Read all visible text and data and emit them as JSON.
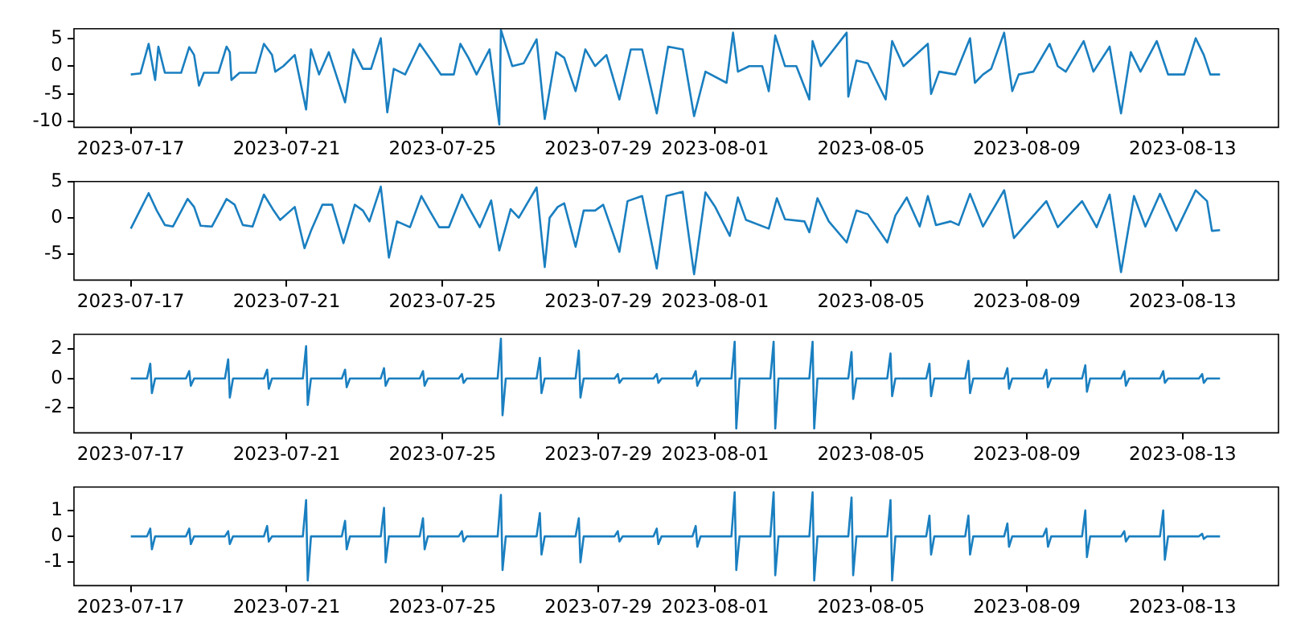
{
  "chart_data": [
    {
      "type": "line",
      "xlim": [
        "2023-07-15T13:00",
        "2023-08-15T11:00"
      ],
      "xticks": [
        "2023-07-17",
        "2023-07-21",
        "2023-07-25",
        "2023-07-29",
        "2023-08-01",
        "2023-08-05",
        "2023-08-09",
        "2023-08-13"
      ],
      "ylim": [
        -11,
        6.7
      ],
      "yticks": [
        -10,
        -5,
        0,
        5
      ],
      "marker": "none",
      "series": [
        {
          "color": "#1a7fc0",
          "x": [
            "2023-07-17T00:00",
            "2023-07-17T06:00",
            "2023-07-17T11:00",
            "2023-07-17T15:00",
            "2023-07-17T17:00",
            "2023-07-17T21:00",
            "2023-07-18T07:00",
            "2023-07-18T12:00",
            "2023-07-18T15:00",
            "2023-07-18T18:00",
            "2023-07-18T21:00",
            "2023-07-19T06:00",
            "2023-07-19T11:00",
            "2023-07-19T13:00",
            "2023-07-19T14:00",
            "2023-07-19T19:00",
            "2023-07-20T05:00",
            "2023-07-20T10:00",
            "2023-07-20T15:00",
            "2023-07-20T17:00",
            "2023-07-20T22:00",
            "2023-07-21T05:00",
            "2023-07-21T12:00",
            "2023-07-21T15:00",
            "2023-07-21T20:00",
            "2023-07-22T02:00",
            "2023-07-22T12:00",
            "2023-07-22T17:00",
            "2023-07-22T23:00",
            "2023-07-23T04:00",
            "2023-07-23T10:00",
            "2023-07-23T14:00",
            "2023-07-23T18:00",
            "2023-07-24T01:00",
            "2023-07-24T10:00",
            "2023-07-24T16:00",
            "2023-07-24T23:00",
            "2023-07-25T07:00",
            "2023-07-25T11:00",
            "2023-07-25T16:00",
            "2023-07-25T21:00",
            "2023-07-26T05:00",
            "2023-07-26T11:00",
            "2023-07-26T12:00",
            "2023-07-26T19:00",
            "2023-07-27T02:00",
            "2023-07-27T10:00",
            "2023-07-27T15:00",
            "2023-07-27T22:00",
            "2023-07-28T03:00",
            "2023-07-28T10:00",
            "2023-07-28T16:00",
            "2023-07-28T22:00",
            "2023-07-29T05:00",
            "2023-07-29T13:00",
            "2023-07-29T20:00",
            "2023-07-30T03:00",
            "2023-07-30T12:00",
            "2023-07-30T19:00",
            "2023-07-31T04:00",
            "2023-07-31T11:00",
            "2023-07-31T18:00",
            "2023-08-01T07:00",
            "2023-08-01T11:00",
            "2023-08-01T14:00",
            "2023-08-01T21:00",
            "2023-08-02T05:00",
            "2023-08-02T09:00",
            "2023-08-02T13:00",
            "2023-08-02T19:00",
            "2023-08-03T02:00",
            "2023-08-03T10:00",
            "2023-08-03T12:00",
            "2023-08-03T17:00",
            "2023-08-04T09:00",
            "2023-08-04T10:00",
            "2023-08-04T15:00",
            "2023-08-04T22:00",
            "2023-08-05T09:00",
            "2023-08-05T13:00",
            "2023-08-05T20:00",
            "2023-08-06T11:00",
            "2023-08-06T13:00",
            "2023-08-06T18:00",
            "2023-08-07T04:00",
            "2023-08-07T13:00",
            "2023-08-07T16:00",
            "2023-08-07T21:00",
            "2023-08-08T02:00",
            "2023-08-08T10:00",
            "2023-08-08T15:00",
            "2023-08-08T19:00",
            "2023-08-09T04:00",
            "2023-08-09T14:00",
            "2023-08-09T19:00",
            "2023-08-10T00:00",
            "2023-08-10T11:00",
            "2023-08-10T17:00",
            "2023-08-11T03:00",
            "2023-08-11T10:00",
            "2023-08-11T16:00",
            "2023-08-11T22:00",
            "2023-08-12T08:00",
            "2023-08-12T15:00",
            "2023-08-13T01:00",
            "2023-08-13T08:00",
            "2023-08-13T13:00",
            "2023-08-13T17:00",
            "2023-08-13T23:00"
          ],
          "values": [
            -1.5,
            -1.3,
            4,
            -2.5,
            3.5,
            -1.2,
            -1.2,
            3.4,
            2,
            -3.5,
            -1.2,
            -1.2,
            3.5,
            2.5,
            -2.5,
            -1.2,
            -1.2,
            4,
            2,
            -1,
            0,
            2,
            -7.8,
            3,
            -1.5,
            2.5,
            -6.5,
            3,
            -0.5,
            -0.5,
            5,
            -8.3,
            -0.5,
            -1.5,
            4,
            1.5,
            -1.5,
            -1.5,
            4,
            1.5,
            -1.5,
            3,
            -10.5,
            6.5,
            0,
            0.5,
            4.8,
            -9.5,
            2.5,
            1.5,
            -4.5,
            3,
            0,
            2,
            -6,
            3,
            3,
            -8.5,
            3.5,
            3,
            -9,
            -1,
            -3,
            6,
            -1,
            0,
            0,
            -4.5,
            5.5,
            0,
            0,
            -6,
            4.5,
            0,
            6,
            -5.5,
            1,
            0.5,
            -6,
            4.5,
            0,
            4,
            -5,
            -1,
            -1.5,
            5,
            -3,
            -1.5,
            -0.5,
            6,
            -4.5,
            -1.5,
            -1,
            4,
            0,
            -1,
            4.5,
            -1,
            3.5,
            -8.5,
            2.5,
            -1,
            4.5,
            -1.5,
            -1.5,
            5,
            2,
            -1.5,
            -1.5
          ]
        }
      ]
    },
    {
      "type": "line",
      "xlim": [
        "2023-07-15T13:00",
        "2023-08-15T11:00"
      ],
      "xticks": [
        "2023-07-17",
        "2023-07-21",
        "2023-07-25",
        "2023-07-29",
        "2023-08-01",
        "2023-08-05",
        "2023-08-09",
        "2023-08-13"
      ],
      "ylim": [
        -8.6,
        5
      ],
      "yticks": [
        -5,
        0,
        5
      ],
      "marker": "none",
      "series": [
        {
          "color": "#1a7fc0",
          "x": [
            "2023-07-17T00:00",
            "2023-07-17T11:00",
            "2023-07-17T16:00",
            "2023-07-17T21:00",
            "2023-07-18T02:00",
            "2023-07-18T11:00",
            "2023-07-18T15:00",
            "2023-07-18T19:00",
            "2023-07-19T02:00",
            "2023-07-19T11:00",
            "2023-07-19T16:00",
            "2023-07-19T21:00",
            "2023-07-20T03:00",
            "2023-07-20T10:00",
            "2023-07-20T16:00",
            "2023-07-20T20:00",
            "2023-07-21T05:00",
            "2023-07-21T11:00",
            "2023-07-21T15:00",
            "2023-07-21T22:00",
            "2023-07-22T04:00",
            "2023-07-22T11:00",
            "2023-07-22T18:00",
            "2023-07-22T23:00",
            "2023-07-23T03:00",
            "2023-07-23T10:00",
            "2023-07-23T15:00",
            "2023-07-23T20:00",
            "2023-07-24T04:00",
            "2023-07-24T11:00",
            "2023-07-24T16:00",
            "2023-07-24T22:00",
            "2023-07-25T04:00",
            "2023-07-25T12:00",
            "2023-07-25T16:00",
            "2023-07-25T23:00",
            "2023-07-26T06:00",
            "2023-07-26T11:00",
            "2023-07-26T18:00",
            "2023-07-26T23:00",
            "2023-07-27T10:00",
            "2023-07-27T15:00",
            "2023-07-27T18:00",
            "2023-07-27T23:00",
            "2023-07-28T03:00",
            "2023-07-28T10:00",
            "2023-07-28T15:00",
            "2023-07-28T22:00",
            "2023-07-29T03:00",
            "2023-07-29T13:00",
            "2023-07-29T18:00",
            "2023-07-30T03:00",
            "2023-07-30T12:00",
            "2023-07-30T18:00",
            "2023-07-31T04:00",
            "2023-07-31T11:00",
            "2023-07-31T18:00",
            "2023-08-01T00:00",
            "2023-08-01T09:00",
            "2023-08-01T14:00",
            "2023-08-01T19:00",
            "2023-08-02T09:00",
            "2023-08-02T14:00",
            "2023-08-02T19:00",
            "2023-08-03T07:00",
            "2023-08-03T10:00",
            "2023-08-03T15:00",
            "2023-08-03T22:00",
            "2023-08-04T09:00",
            "2023-08-04T15:00",
            "2023-08-04T22:00",
            "2023-08-05T10:00",
            "2023-08-05T15:00",
            "2023-08-05T22:00",
            "2023-08-06T06:00",
            "2023-08-06T11:00",
            "2023-08-06T16:00",
            "2023-08-07T01:00",
            "2023-08-07T06:00",
            "2023-08-07T13:00",
            "2023-08-07T21:00",
            "2023-08-08T10:00",
            "2023-08-08T16:00",
            "2023-08-08T23:00",
            "2023-08-09T12:00",
            "2023-08-09T19:00",
            "2023-08-10T10:00",
            "2023-08-10T19:00",
            "2023-08-11T03:00",
            "2023-08-11T10:00",
            "2023-08-11T18:00",
            "2023-08-12T01:00",
            "2023-08-12T10:00",
            "2023-08-12T20:00",
            "2023-08-13T08:00",
            "2023-08-13T15:00",
            "2023-08-13T18:00",
            "2023-08-13T23:00"
          ],
          "values": [
            -1.5,
            3.4,
            1,
            -1,
            -1.2,
            2.6,
            1.5,
            -1.1,
            -1.2,
            2.6,
            1.8,
            -1,
            -1.2,
            3.2,
            1,
            -0.3,
            1.5,
            -4.2,
            -1.8,
            1.8,
            1.8,
            -3.5,
            1.8,
            1,
            -0.5,
            4.3,
            -5.5,
            -0.5,
            -1.3,
            3,
            1,
            -1.3,
            -1.3,
            3.2,
            1.5,
            -1.3,
            2.4,
            -4.5,
            1.2,
            0,
            4.2,
            -6.8,
            0,
            1.5,
            2,
            -4,
            1,
            1,
            1.8,
            -4.7,
            2.3,
            3,
            -7,
            3,
            3.6,
            -7.8,
            3.5,
            1.5,
            -2.5,
            2.8,
            -0.3,
            -1.5,
            2.7,
            -0.2,
            -0.5,
            -2,
            2.7,
            -0.5,
            -3.4,
            1,
            0.5,
            -3.4,
            0.3,
            2.8,
            -1.2,
            3,
            -1,
            -0.5,
            -1,
            3.3,
            -1.2,
            3.8,
            -2.8,
            -1,
            2.3,
            -1.3,
            2.3,
            -1.3,
            3.2,
            -7.5,
            3,
            -1.2,
            3.3,
            -1.8,
            3.8,
            2.3,
            -1.8,
            -1.7
          ]
        }
      ]
    },
    {
      "type": "line",
      "xlim": [
        "2023-07-15T13:00",
        "2023-08-15T11:00"
      ],
      "xticks": [
        "2023-07-17",
        "2023-07-21",
        "2023-07-25",
        "2023-07-29",
        "2023-08-01",
        "2023-08-05",
        "2023-08-09",
        "2023-08-13"
      ],
      "ylim": [
        -3.7,
        3
      ],
      "yticks": [
        -2,
        0,
        2
      ],
      "marker": "none",
      "series": [
        {
          "color": "#1a7fc0",
          "x": [
            "2023-07-17T00:00",
            "2023-07-17T10:00",
            "2023-07-17T12:00",
            "2023-07-17T13:00",
            "2023-07-17T15:00",
            "2023-07-18T10:00",
            "2023-07-18T12:00",
            "2023-07-18T13:00",
            "2023-07-18T15:00",
            "2023-07-19T10:00",
            "2023-07-19T12:00",
            "2023-07-19T13:00",
            "2023-07-19T15:00",
            "2023-07-20T10:00",
            "2023-07-20T12:00",
            "2023-07-20T13:00",
            "2023-07-20T15:00",
            "2023-07-21T10:00",
            "2023-07-21T12:00",
            "2023-07-21T13:00",
            "2023-07-21T15:00",
            "2023-07-22T10:00",
            "2023-07-22T12:00",
            "2023-07-22T13:00",
            "2023-07-22T15:00",
            "2023-07-23T10:00",
            "2023-07-23T12:00",
            "2023-07-23T13:00",
            "2023-07-23T15:00",
            "2023-07-24T10:00",
            "2023-07-24T12:00",
            "2023-07-24T13:00",
            "2023-07-24T15:00",
            "2023-07-25T10:00",
            "2023-07-25T12:00",
            "2023-07-25T13:00",
            "2023-07-25T15:00",
            "2023-07-26T10:00",
            "2023-07-26T12:00",
            "2023-07-26T13:00",
            "2023-07-26T15:00",
            "2023-07-27T10:00",
            "2023-07-27T12:00",
            "2023-07-27T13:00",
            "2023-07-27T15:00",
            "2023-07-28T10:00",
            "2023-07-28T12:00",
            "2023-07-28T13:00",
            "2023-07-28T15:00",
            "2023-07-29T10:00",
            "2023-07-29T12:00",
            "2023-07-29T13:00",
            "2023-07-29T15:00",
            "2023-07-30T10:00",
            "2023-07-30T12:00",
            "2023-07-30T13:00",
            "2023-07-30T15:00",
            "2023-07-31T10:00",
            "2023-07-31T12:00",
            "2023-07-31T13:00",
            "2023-07-31T15:00",
            "2023-08-01T10:00",
            "2023-08-01T12:00",
            "2023-08-01T13:00",
            "2023-08-01T15:00",
            "2023-08-02T10:00",
            "2023-08-02T12:00",
            "2023-08-02T13:00",
            "2023-08-02T15:00",
            "2023-08-03T10:00",
            "2023-08-03T12:00",
            "2023-08-03T13:00",
            "2023-08-03T15:00",
            "2023-08-04T10:00",
            "2023-08-04T12:00",
            "2023-08-04T13:00",
            "2023-08-04T15:00",
            "2023-08-05T10:00",
            "2023-08-05T12:00",
            "2023-08-05T13:00",
            "2023-08-05T15:00",
            "2023-08-06T10:00",
            "2023-08-06T12:00",
            "2023-08-06T13:00",
            "2023-08-06T15:00",
            "2023-08-07T10:00",
            "2023-08-07T12:00",
            "2023-08-07T13:00",
            "2023-08-07T15:00",
            "2023-08-08T10:00",
            "2023-08-08T12:00",
            "2023-08-08T13:00",
            "2023-08-08T15:00",
            "2023-08-09T10:00",
            "2023-08-09T12:00",
            "2023-08-09T13:00",
            "2023-08-09T15:00",
            "2023-08-10T10:00",
            "2023-08-10T12:00",
            "2023-08-10T13:00",
            "2023-08-10T15:00",
            "2023-08-11T10:00",
            "2023-08-11T12:00",
            "2023-08-11T13:00",
            "2023-08-11T15:00",
            "2023-08-12T10:00",
            "2023-08-12T12:00",
            "2023-08-12T13:00",
            "2023-08-12T15:00",
            "2023-08-13T10:00",
            "2023-08-13T12:00",
            "2023-08-13T13:00",
            "2023-08-13T15:00",
            "2023-08-13T23:00"
          ],
          "values": [
            0,
            0,
            1,
            -1,
            0,
            0,
            0.5,
            -0.5,
            0,
            0,
            1.3,
            -1.3,
            0,
            0,
            0.6,
            -0.7,
            0,
            0,
            2.2,
            -1.8,
            0,
            0,
            0.6,
            -0.6,
            0,
            0,
            0.7,
            -0.5,
            0,
            0,
            0.5,
            -0.5,
            0,
            0,
            0.3,
            -0.3,
            0,
            0,
            2.7,
            -2.5,
            0,
            0,
            1.4,
            -1,
            0,
            0,
            1.9,
            -1.3,
            0,
            0,
            0.3,
            -0.3,
            0,
            0,
            0.3,
            -0.3,
            0,
            0,
            0.5,
            -0.5,
            0,
            0,
            2.5,
            -3.4,
            0,
            0,
            2.5,
            -3.4,
            0,
            0,
            2.5,
            -3.4,
            0,
            0,
            1.8,
            -1.4,
            0,
            0,
            1.7,
            -1.2,
            0,
            0,
            1,
            -1.2,
            0,
            0,
            1.2,
            -1,
            0,
            0,
            0.7,
            -0.7,
            0,
            0,
            0.6,
            -0.6,
            0,
            0,
            0.9,
            -0.9,
            0,
            0,
            0.5,
            -0.5,
            0,
            0,
            0.5,
            -0.3,
            0,
            0,
            0.3,
            -0.3,
            0,
            0
          ]
        }
      ]
    },
    {
      "type": "line",
      "xlim": [
        "2023-07-15T13:00",
        "2023-08-15T11:00"
      ],
      "xticks": [
        "2023-07-17",
        "2023-07-21",
        "2023-07-25",
        "2023-07-29",
        "2023-08-01",
        "2023-08-05",
        "2023-08-09",
        "2023-08-13"
      ],
      "ylim": [
        -1.9,
        1.9
      ],
      "yticks": [
        -1,
        0,
        1
      ],
      "marker": "none",
      "series": [
        {
          "color": "#1a7fc0",
          "x": [
            "2023-07-17T00:00",
            "2023-07-17T10:00",
            "2023-07-17T12:00",
            "2023-07-17T13:00",
            "2023-07-17T15:00",
            "2023-07-18T10:00",
            "2023-07-18T12:00",
            "2023-07-18T13:00",
            "2023-07-18T15:00",
            "2023-07-19T10:00",
            "2023-07-19T12:00",
            "2023-07-19T13:00",
            "2023-07-19T15:00",
            "2023-07-20T10:00",
            "2023-07-20T12:00",
            "2023-07-20T13:00",
            "2023-07-20T15:00",
            "2023-07-21T10:00",
            "2023-07-21T12:00",
            "2023-07-21T13:00",
            "2023-07-21T15:00",
            "2023-07-22T10:00",
            "2023-07-22T12:00",
            "2023-07-22T13:00",
            "2023-07-22T15:00",
            "2023-07-23T10:00",
            "2023-07-23T12:00",
            "2023-07-23T13:00",
            "2023-07-23T15:00",
            "2023-07-24T10:00",
            "2023-07-24T12:00",
            "2023-07-24T13:00",
            "2023-07-24T15:00",
            "2023-07-25T10:00",
            "2023-07-25T12:00",
            "2023-07-25T13:00",
            "2023-07-25T15:00",
            "2023-07-26T10:00",
            "2023-07-26T12:00",
            "2023-07-26T13:00",
            "2023-07-26T15:00",
            "2023-07-27T10:00",
            "2023-07-27T12:00",
            "2023-07-27T13:00",
            "2023-07-27T15:00",
            "2023-07-28T10:00",
            "2023-07-28T12:00",
            "2023-07-28T13:00",
            "2023-07-28T15:00",
            "2023-07-29T10:00",
            "2023-07-29T12:00",
            "2023-07-29T13:00",
            "2023-07-29T15:00",
            "2023-07-30T10:00",
            "2023-07-30T12:00",
            "2023-07-30T13:00",
            "2023-07-30T15:00",
            "2023-07-31T10:00",
            "2023-07-31T12:00",
            "2023-07-31T13:00",
            "2023-07-31T15:00",
            "2023-08-01T10:00",
            "2023-08-01T12:00",
            "2023-08-01T13:00",
            "2023-08-01T15:00",
            "2023-08-02T10:00",
            "2023-08-02T12:00",
            "2023-08-02T13:00",
            "2023-08-02T15:00",
            "2023-08-03T10:00",
            "2023-08-03T12:00",
            "2023-08-03T13:00",
            "2023-08-03T15:00",
            "2023-08-04T10:00",
            "2023-08-04T12:00",
            "2023-08-04T13:00",
            "2023-08-04T15:00",
            "2023-08-05T10:00",
            "2023-08-05T12:00",
            "2023-08-05T13:00",
            "2023-08-05T15:00",
            "2023-08-06T10:00",
            "2023-08-06T12:00",
            "2023-08-06T13:00",
            "2023-08-06T15:00",
            "2023-08-07T10:00",
            "2023-08-07T12:00",
            "2023-08-07T13:00",
            "2023-08-07T15:00",
            "2023-08-08T10:00",
            "2023-08-08T12:00",
            "2023-08-08T13:00",
            "2023-08-08T15:00",
            "2023-08-09T10:00",
            "2023-08-09T12:00",
            "2023-08-09T13:00",
            "2023-08-09T15:00",
            "2023-08-10T10:00",
            "2023-08-10T12:00",
            "2023-08-10T13:00",
            "2023-08-10T15:00",
            "2023-08-11T10:00",
            "2023-08-11T12:00",
            "2023-08-11T13:00",
            "2023-08-11T15:00",
            "2023-08-12T10:00",
            "2023-08-12T12:00",
            "2023-08-12T13:00",
            "2023-08-12T15:00",
            "2023-08-13T10:00",
            "2023-08-13T12:00",
            "2023-08-13T13:00",
            "2023-08-13T15:00",
            "2023-08-13T23:00"
          ],
          "values": [
            0,
            0,
            0.3,
            -0.5,
            0,
            0,
            0.3,
            -0.3,
            0,
            0,
            0.2,
            -0.3,
            0,
            0,
            0.4,
            -0.2,
            0,
            0,
            1.4,
            -1.7,
            0,
            0,
            0.6,
            -0.5,
            0,
            0,
            1.1,
            -1,
            0,
            0,
            0.7,
            -0.5,
            0,
            0,
            0.2,
            -0.2,
            0,
            0,
            1.6,
            -1.3,
            0,
            0,
            0.9,
            -0.7,
            0,
            0,
            0.7,
            -1,
            0,
            0,
            0.2,
            -0.2,
            0,
            0,
            0.3,
            -0.3,
            0,
            0,
            0.4,
            -0.4,
            0,
            0,
            1.7,
            -1.3,
            0,
            0,
            1.7,
            -1.5,
            0,
            0,
            1.7,
            -1.7,
            0,
            0,
            1.5,
            -1.5,
            0,
            0,
            1.4,
            -1.7,
            0,
            0,
            0.8,
            -0.7,
            0,
            0,
            0.8,
            -0.7,
            0,
            0,
            0.5,
            -0.4,
            0,
            0,
            0.3,
            -0.4,
            0,
            0,
            1,
            -0.8,
            0,
            0,
            0.2,
            -0.2,
            0,
            0,
            1,
            -0.9,
            0,
            0,
            0.1,
            -0.1,
            0,
            0
          ]
        }
      ]
    }
  ]
}
